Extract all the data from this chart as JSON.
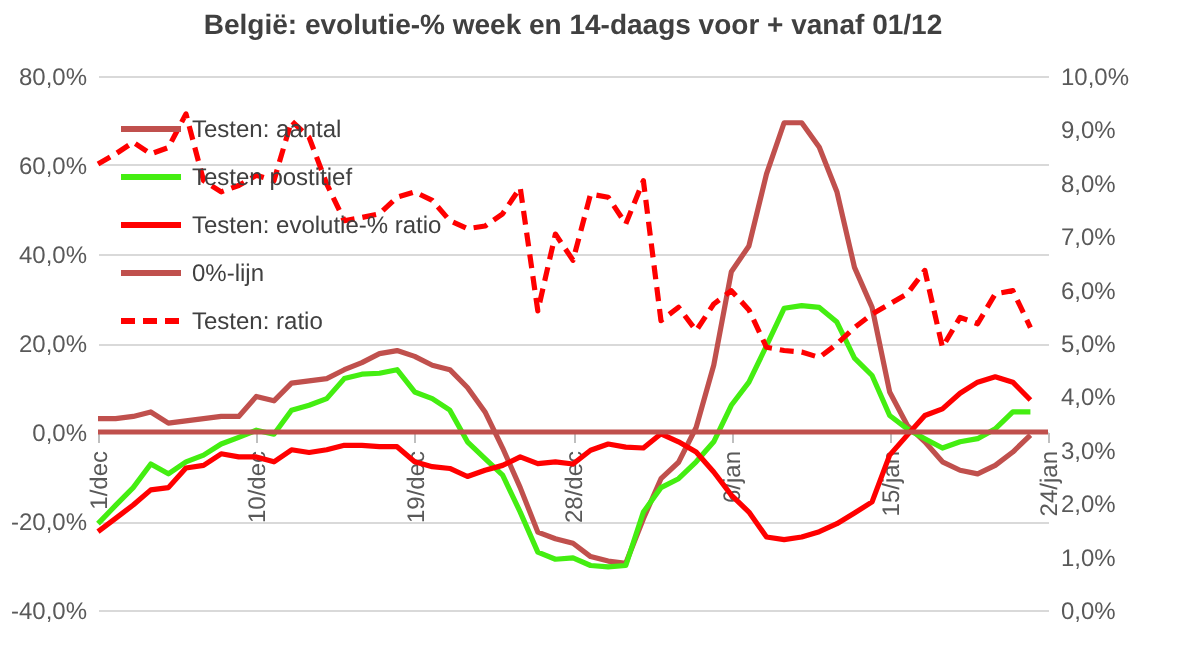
{
  "chart_data": {
    "type": "line",
    "title": "België: evolutie-%  week en 14-daags voor + vanaf 01/12",
    "categories": [
      "1/dec",
      null,
      null,
      null,
      null,
      null,
      null,
      null,
      null,
      "10/dec",
      null,
      null,
      null,
      null,
      null,
      null,
      null,
      null,
      "19/dec",
      null,
      null,
      null,
      null,
      null,
      null,
      null,
      null,
      "28/dec",
      null,
      null,
      null,
      null,
      null,
      null,
      null,
      null,
      "6/jan",
      null,
      null,
      null,
      null,
      null,
      null,
      null,
      null,
      "15/jan",
      null,
      null,
      null,
      null,
      null,
      null,
      null,
      null,
      "24/jan"
    ],
    "series": [
      {
        "name": "Testen: aantal",
        "color": "#c0504d",
        "values": [
          3,
          3,
          3.5,
          4.5,
          2,
          2.5,
          3,
          3.5,
          3.5,
          8,
          7,
          11,
          11.5,
          12,
          14,
          15.6,
          17.6,
          18.3,
          17,
          15,
          14,
          10,
          4.5,
          -3.6,
          -12.5,
          -22.5,
          -24,
          -25,
          -28,
          -29,
          -29.5,
          -19.5,
          -10.5,
          -6.8,
          1,
          15,
          36,
          41.8,
          58,
          69.5,
          69.5,
          64,
          54,
          37,
          28,
          9,
          1.5,
          -2.2,
          -6.7,
          -8.6,
          -9.4,
          -7.5,
          -4.5,
          -0.7,
          null
        ]
      },
      {
        "name": "Testen postitief",
        "color": "#44ee11",
        "values": [
          -20.6,
          -16.5,
          -12.5,
          -7.2,
          -9.4,
          -6.7,
          -5.2,
          -2.7,
          -1.2,
          0.4,
          -0.5,
          4.9,
          6,
          7.5,
          12,
          13,
          13.2,
          14,
          9,
          7.5,
          4.9,
          -2.2,
          -6,
          -9.7,
          -18,
          -27,
          -28.6,
          -28.3,
          -30,
          -30.3,
          -30,
          -18,
          -12.5,
          -10.5,
          -6.7,
          -2.2,
          6,
          11.2,
          19.4,
          27.8,
          28.4,
          28,
          24.7,
          16.6,
          12.7,
          3.7,
          0.7,
          -1.5,
          -3.6,
          -2.2,
          -1.5,
          0.7,
          4.5,
          4.5,
          null
        ]
      },
      {
        "name": "Testen: evolutie-% ratio",
        "color": "#ff0000",
        "values": [
          -22.4,
          -19.4,
          -16.4,
          -13,
          -12.5,
          -8.1,
          -7.5,
          -4.9,
          -5.6,
          -5.6,
          -6.7,
          -4,
          -4.6,
          -4,
          -3,
          -3,
          -3.3,
          -3.3,
          -6.7,
          -7.8,
          -8.2,
          -10,
          -8.6,
          -7.5,
          -5.6,
          -7.1,
          -6.7,
          -7.2,
          -4.1,
          -2.7,
          -3.4,
          -3.6,
          -0.4,
          -2.2,
          -4.5,
          -9,
          -14.2,
          -18,
          -23.6,
          -24.2,
          -23.6,
          -22.4,
          -20.6,
          -18.2,
          -15.7,
          -5.2,
          -0.7,
          3.7,
          5.2,
          8.7,
          11.2,
          12.4,
          11.2,
          7.2,
          null
        ]
      },
      {
        "name": "0%-lijn",
        "color": "#c0504d",
        "values": [
          0,
          0,
          0,
          0,
          0,
          0,
          0,
          0,
          0,
          0,
          0,
          0,
          0,
          0,
          0,
          0,
          0,
          0,
          0,
          0,
          0,
          0,
          0,
          0,
          0,
          0,
          0,
          0,
          0,
          0,
          0,
          0,
          0,
          0,
          0,
          0,
          0,
          0,
          0,
          0,
          0,
          0,
          0,
          0,
          0,
          0,
          0,
          0,
          0,
          0,
          0,
          0,
          0,
          0,
          0
        ]
      },
      {
        "name": "Testen: ratio",
        "color": "#ff0000",
        "axis": "y2",
        "line_style": "dashed",
        "values": [
          8.35,
          8.54,
          8.76,
          8.54,
          8.66,
          9.29,
          8.04,
          7.83,
          7.95,
          8.14,
          8.04,
          9.16,
          8.85,
          7.98,
          7.29,
          7.35,
          7.42,
          7.73,
          7.83,
          7.67,
          7.29,
          7.14,
          7.19,
          7.42,
          7.91,
          5.6,
          7.04,
          6.55,
          7.79,
          7.73,
          7.23,
          8.04,
          5.42,
          5.67,
          5.23,
          5.73,
          5.98,
          5.62,
          4.92,
          4.86,
          4.83,
          4.73,
          4.98,
          5.29,
          5.54,
          5.73,
          5.92,
          6.36,
          4.92,
          5.48,
          5.36,
          5.92,
          5.98,
          5.29,
          null
        ]
      }
    ],
    "ylim": [
      -40,
      80
    ],
    "yticks": [
      {
        "value": -40,
        "label": "-40,0%"
      },
      {
        "value": -20,
        "label": "-20,0%"
      },
      {
        "value": 0,
        "label": "0,0%"
      },
      {
        "value": 20,
        "label": "20,0%"
      },
      {
        "value": 40,
        "label": "40,0%"
      },
      {
        "value": 60,
        "label": "60,0%"
      },
      {
        "value": 80,
        "label": "80,0%"
      }
    ],
    "y2lim": [
      0,
      10
    ],
    "y2ticks": [
      {
        "value": 0,
        "label": "0,0%"
      },
      {
        "value": 1,
        "label": "1,0%"
      },
      {
        "value": 2,
        "label": "2,0%"
      },
      {
        "value": 3,
        "label": "3,0%"
      },
      {
        "value": 4,
        "label": "4,0%"
      },
      {
        "value": 5,
        "label": "5,0%"
      },
      {
        "value": 6,
        "label": "6,0%"
      },
      {
        "value": 7,
        "label": "7,0%"
      },
      {
        "value": 8,
        "label": "8,0%"
      },
      {
        "value": 9,
        "label": "9,0%"
      },
      {
        "value": 10,
        "label": "10,0%"
      }
    ],
    "grid": "y",
    "legend": "top left"
  }
}
